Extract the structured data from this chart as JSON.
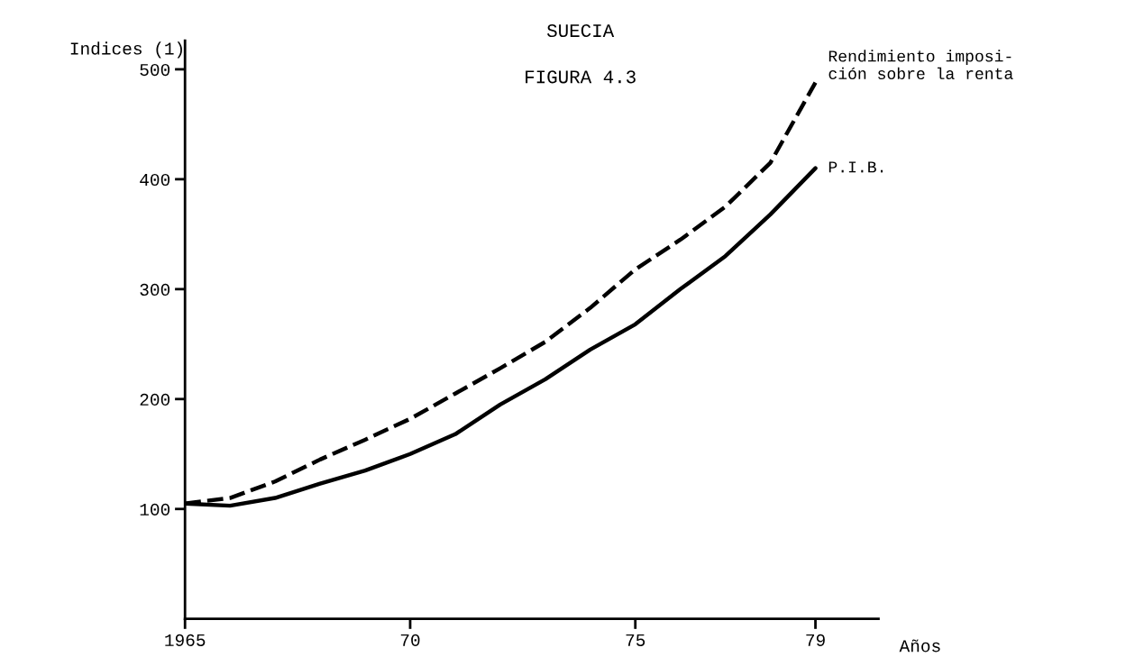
{
  "chart_data": {
    "type": "line",
    "title": "SUECIA",
    "subtitle": "FIGURA 4.3",
    "xlabel": "Años",
    "ylabel": "Indices (1)",
    "x": [
      1965,
      1966,
      1967,
      1968,
      1969,
      1970,
      1971,
      1972,
      1973,
      1974,
      1975,
      1976,
      1977,
      1978,
      1979
    ],
    "series": [
      {
        "name": "Rendimiento imposi-\nción sobre la renta",
        "color": "#000000",
        "line_style": "dashed",
        "values": [
          105,
          110,
          125,
          145,
          163,
          182,
          205,
          228,
          252,
          283,
          318,
          345,
          375,
          415,
          488
        ]
      },
      {
        "name": "P.I.B.",
        "color": "#000000",
        "line_style": "solid",
        "values": [
          105,
          103,
          110,
          123,
          135,
          150,
          168,
          195,
          218,
          245,
          268,
          300,
          330,
          368,
          410
        ]
      }
    ],
    "xlim": [
      1965,
      1980.4
    ],
    "ylim": [
      0,
      526
    ],
    "xticks": [
      {
        "value": 1965,
        "label": "1965"
      },
      {
        "value": 1970,
        "label": "70"
      },
      {
        "value": 1975,
        "label": "75"
      },
      {
        "value": 1979,
        "label": "79"
      }
    ],
    "yticks": [
      100,
      200,
      300,
      400,
      500
    ],
    "grid": false,
    "legend": false,
    "marker": "none"
  }
}
